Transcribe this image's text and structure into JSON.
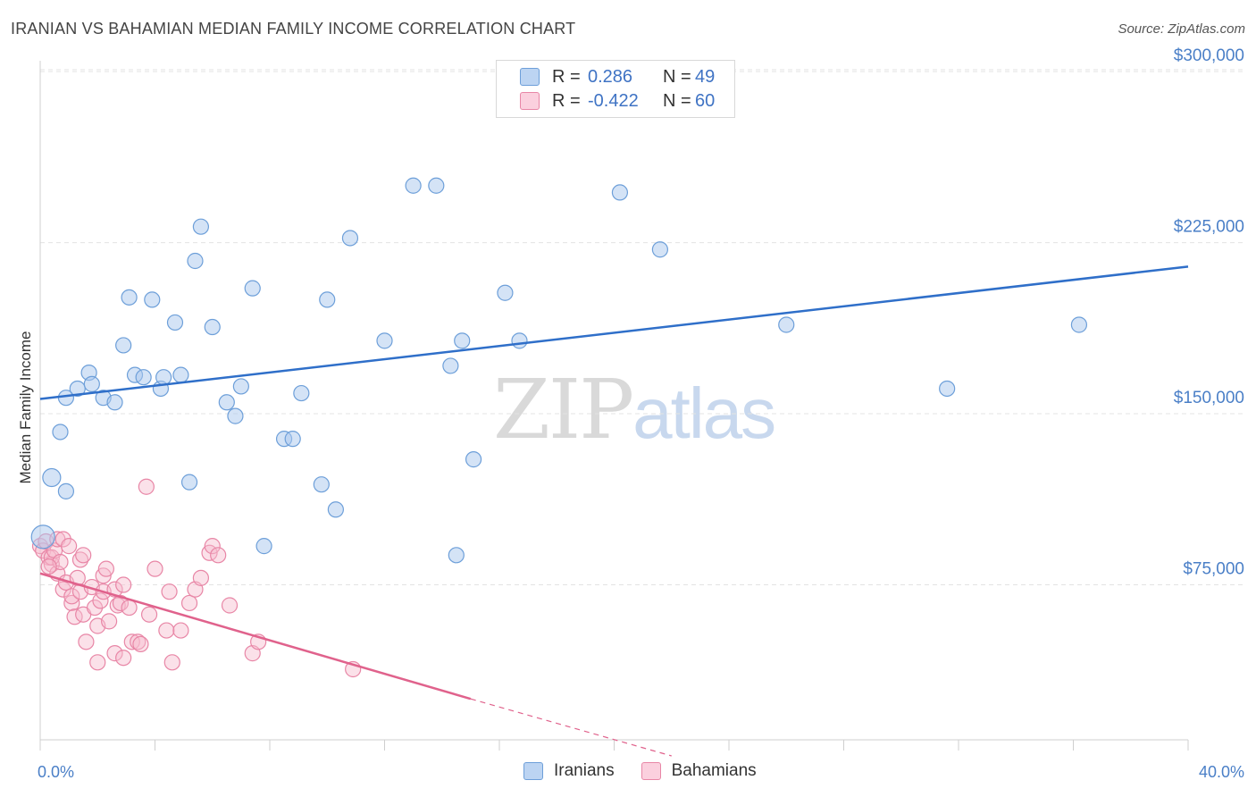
{
  "header": {
    "title": "IRANIAN VS BAHAMIAN MEDIAN FAMILY INCOME CORRELATION CHART",
    "source": "Source: ZipAtlas.com"
  },
  "watermark": {
    "zip": "ZIP",
    "atlas": "atlas"
  },
  "legend": {
    "rows": [
      {
        "r_label": "R =",
        "r_value": "0.286",
        "n_label": "N =",
        "n_value": "49"
      },
      {
        "r_label": "R =",
        "r_value": "-0.422",
        "n_label": "N =",
        "n_value": "60"
      }
    ]
  },
  "bottom_legend": {
    "items": [
      "Iranians",
      "Bahamians"
    ]
  },
  "colors": {
    "iranians_fill": "#a9c8ee",
    "iranians_stroke": "#6d9fd9",
    "iranians_line": "#2f6fc9",
    "bahamians_fill": "#f7bccf",
    "bahamians_stroke": "#e886a6",
    "bahamians_line": "#e0628c",
    "grid": "#e3e3e3",
    "axis_label": "#4a7fc7"
  },
  "chart_data": {
    "type": "scatter",
    "title": "IRANIAN VS BAHAMIAN MEDIAN FAMILY INCOME CORRELATION CHART",
    "xlabel": "",
    "ylabel": "Median Family Income",
    "xlim": [
      0,
      40
    ],
    "ylim": [
      0,
      310000
    ],
    "x_tick_labels": [
      "0.0%",
      "40.0%"
    ],
    "y_ticks": [
      75000,
      150000,
      225000,
      300000
    ],
    "y_tick_labels": [
      "$75,000",
      "$150,000",
      "$225,000",
      "$300,000"
    ],
    "grid": true,
    "legend_position": "top-center",
    "series": [
      {
        "name": "Iranians",
        "r": 0.286,
        "n": 49,
        "trend": {
          "x": [
            0,
            40
          ],
          "y": [
            156500,
            214500
          ]
        },
        "points": [
          [
            0.1,
            96000
          ],
          [
            0.4,
            122000
          ],
          [
            0.7,
            142000
          ],
          [
            0.9,
            116000
          ],
          [
            0.9,
            157000
          ],
          [
            1.3,
            161000
          ],
          [
            1.7,
            168000
          ],
          [
            1.8,
            163000
          ],
          [
            2.2,
            157000
          ],
          [
            2.6,
            155000
          ],
          [
            2.9,
            180000
          ],
          [
            3.1,
            201000
          ],
          [
            3.3,
            167000
          ],
          [
            3.6,
            166000
          ],
          [
            3.9,
            200000
          ],
          [
            4.2,
            161000
          ],
          [
            4.3,
            166000
          ],
          [
            4.7,
            190000
          ],
          [
            4.9,
            167000
          ],
          [
            5.2,
            120000
          ],
          [
            5.4,
            217000
          ],
          [
            5.6,
            232000
          ],
          [
            6.0,
            188000
          ],
          [
            6.5,
            155000
          ],
          [
            6.8,
            149000
          ],
          [
            7.0,
            162000
          ],
          [
            7.4,
            205000
          ],
          [
            7.8,
            92000
          ],
          [
            8.5,
            139000
          ],
          [
            8.8,
            139000
          ],
          [
            9.1,
            159000
          ],
          [
            9.8,
            119000
          ],
          [
            10.0,
            200000
          ],
          [
            10.3,
            108000
          ],
          [
            10.8,
            227000
          ],
          [
            12.0,
            182000
          ],
          [
            13.0,
            250000
          ],
          [
            13.8,
            250000
          ],
          [
            14.3,
            171000
          ],
          [
            14.5,
            88000
          ],
          [
            14.7,
            182000
          ],
          [
            15.1,
            130000
          ],
          [
            16.2,
            203000
          ],
          [
            16.7,
            182000
          ],
          [
            20.2,
            247000
          ],
          [
            21.6,
            222000
          ],
          [
            26.0,
            189000
          ],
          [
            31.6,
            161000
          ],
          [
            36.2,
            189000
          ]
        ]
      },
      {
        "name": "Bahamians",
        "r": -0.422,
        "n": 60,
        "trend": {
          "x": [
            0,
            15
          ],
          "y": [
            80000,
            25000
          ]
        },
        "trend_dashed": {
          "x": [
            15,
            22
          ],
          "y": [
            25000,
            0
          ]
        },
        "points": [
          [
            0.0,
            92000
          ],
          [
            0.1,
            90000
          ],
          [
            0.2,
            94000
          ],
          [
            0.3,
            87000
          ],
          [
            0.4,
            84000
          ],
          [
            0.4,
            87000
          ],
          [
            0.5,
            90000
          ],
          [
            0.6,
            95000
          ],
          [
            0.6,
            80000
          ],
          [
            0.7,
            85000
          ],
          [
            0.8,
            73000
          ],
          [
            0.8,
            95000
          ],
          [
            0.9,
            76000
          ],
          [
            1.0,
            92000
          ],
          [
            1.1,
            67000
          ],
          [
            1.1,
            70000
          ],
          [
            1.2,
            61000
          ],
          [
            1.3,
            78000
          ],
          [
            1.4,
            86000
          ],
          [
            1.4,
            72000
          ],
          [
            1.5,
            88000
          ],
          [
            1.5,
            62000
          ],
          [
            1.6,
            50000
          ],
          [
            1.8,
            74000
          ],
          [
            1.9,
            65000
          ],
          [
            2.0,
            57000
          ],
          [
            2.0,
            41000
          ],
          [
            2.1,
            68000
          ],
          [
            2.2,
            79000
          ],
          [
            2.2,
            72000
          ],
          [
            2.3,
            82000
          ],
          [
            2.4,
            59000
          ],
          [
            2.6,
            73000
          ],
          [
            2.6,
            45000
          ],
          [
            2.7,
            66000
          ],
          [
            2.8,
            67000
          ],
          [
            2.9,
            43000
          ],
          [
            2.9,
            75000
          ],
          [
            3.1,
            65000
          ],
          [
            3.2,
            50000
          ],
          [
            3.4,
            50000
          ],
          [
            3.5,
            49000
          ],
          [
            3.7,
            118000
          ],
          [
            3.8,
            62000
          ],
          [
            4.0,
            82000
          ],
          [
            4.4,
            55000
          ],
          [
            4.5,
            72000
          ],
          [
            4.6,
            41000
          ],
          [
            4.9,
            55000
          ],
          [
            5.2,
            67000
          ],
          [
            5.4,
            73000
          ],
          [
            5.6,
            78000
          ],
          [
            5.9,
            89000
          ],
          [
            6.0,
            92000
          ],
          [
            6.2,
            88000
          ],
          [
            6.6,
            66000
          ],
          [
            7.4,
            45000
          ],
          [
            7.6,
            50000
          ],
          [
            10.9,
            38000
          ],
          [
            0.3,
            83000
          ]
        ]
      }
    ]
  }
}
